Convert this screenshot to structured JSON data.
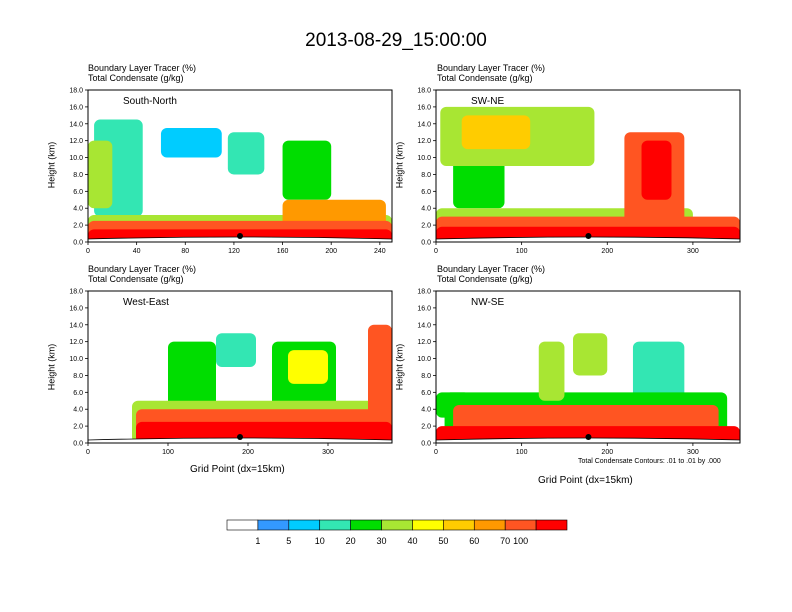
{
  "title": "2013-08-29_15:00:00",
  "chart_data": [
    {
      "type": "heatmap",
      "name": "South-North",
      "panel_title": "South-North",
      "field_label_1": "Boundary Layer Tracer   (%)",
      "field_label_2": "Total Condensate   (g/kg)",
      "ylabel": "Height (km)",
      "xlabel": "",
      "xlim": [
        0,
        250
      ],
      "ylim": [
        0,
        18
      ],
      "x_ticks": [
        "0",
        "40",
        "80",
        "120",
        "160",
        "200",
        "240"
      ],
      "y_ticks": [
        "0.0",
        "2.0",
        "4.0",
        "6.0",
        "8.0",
        "10.0",
        "12.0",
        "14.0",
        "16.0",
        "18.0"
      ],
      "terrain_peak_x": 125,
      "features": [
        {
          "x": [
            0,
            250
          ],
          "y": [
            0,
            1.5
          ],
          "level": 100
        },
        {
          "x": [
            0,
            250
          ],
          "y": [
            0,
            2.5
          ],
          "level": 70
        },
        {
          "x": [
            0,
            250
          ],
          "y": [
            0,
            3.2
          ],
          "level": 30
        },
        {
          "x": [
            160,
            245
          ],
          "y": [
            0,
            5.0
          ],
          "level": 60
        },
        {
          "x": [
            160,
            200
          ],
          "y": [
            5,
            12
          ],
          "level": 20
        },
        {
          "x": [
            5,
            45
          ],
          "y": [
            3,
            14.5
          ],
          "level": 10
        },
        {
          "x": [
            0,
            20
          ],
          "y": [
            4,
            12
          ],
          "level": 30
        },
        {
          "x": [
            60,
            110
          ],
          "y": [
            10,
            13.5
          ],
          "level": 5
        },
        {
          "x": [
            115,
            145
          ],
          "y": [
            8,
            13
          ],
          "level": 10
        }
      ]
    },
    {
      "type": "heatmap",
      "name": "SW-NE",
      "panel_title": "SW-NE",
      "field_label_1": "Boundary Layer Tracer   (%)",
      "field_label_2": "Total Condensate   (g/kg)",
      "ylabel": "Height (km)",
      "xlabel": "",
      "xlim": [
        0,
        355
      ],
      "ylim": [
        0,
        18
      ],
      "x_ticks": [
        "0",
        "100",
        "200",
        "300"
      ],
      "y_ticks": [
        "0.0",
        "2.0",
        "4.0",
        "6.0",
        "8.0",
        "10.0",
        "12.0",
        "14.0",
        "16.0",
        "18.0"
      ],
      "terrain_peak_x": 178,
      "features": [
        {
          "x": [
            0,
            355
          ],
          "y": [
            0,
            1.8
          ],
          "level": 100
        },
        {
          "x": [
            0,
            355
          ],
          "y": [
            0,
            3.0
          ],
          "level": 70
        },
        {
          "x": [
            0,
            300
          ],
          "y": [
            0,
            4.0
          ],
          "level": 30
        },
        {
          "x": [
            5,
            185
          ],
          "y": [
            9,
            16
          ],
          "level": 30
        },
        {
          "x": [
            30,
            110
          ],
          "y": [
            11,
            15
          ],
          "level": 50
        },
        {
          "x": [
            20,
            80
          ],
          "y": [
            4,
            10
          ],
          "level": 20
        },
        {
          "x": [
            220,
            290
          ],
          "y": [
            2,
            13
          ],
          "level": 70
        },
        {
          "x": [
            240,
            275
          ],
          "y": [
            5,
            12
          ],
          "level": 100
        }
      ]
    },
    {
      "type": "heatmap",
      "name": "West-East",
      "panel_title": "West-East",
      "field_label_1": "Boundary Layer Tracer   (%)",
      "field_label_2": "Total Condensate   (g/kg)",
      "ylabel": "Height (km)",
      "xlabel": "Grid Point (dx=15km)",
      "xlim": [
        0,
        380
      ],
      "ylim": [
        0,
        18
      ],
      "x_ticks": [
        "0",
        "100",
        "200",
        "300"
      ],
      "y_ticks": [
        "0.0",
        "2.0",
        "4.0",
        "6.0",
        "8.0",
        "10.0",
        "12.0",
        "14.0",
        "16.0",
        "18.0"
      ],
      "terrain_peak_x": 190,
      "features": [
        {
          "x": [
            60,
            380
          ],
          "y": [
            0,
            2.5
          ],
          "level": 100
        },
        {
          "x": [
            60,
            380
          ],
          "y": [
            0,
            4.0
          ],
          "level": 70
        },
        {
          "x": [
            55,
            380
          ],
          "y": [
            0,
            5.0
          ],
          "level": 30
        },
        {
          "x": [
            100,
            160
          ],
          "y": [
            4,
            12
          ],
          "level": 20
        },
        {
          "x": [
            230,
            310
          ],
          "y": [
            3,
            12
          ],
          "level": 20
        },
        {
          "x": [
            250,
            300
          ],
          "y": [
            7,
            11
          ],
          "level": 40
        },
        {
          "x": [
            350,
            380
          ],
          "y": [
            0,
            14
          ],
          "level": 70
        },
        {
          "x": [
            160,
            210
          ],
          "y": [
            9,
            13
          ],
          "level": 10
        }
      ]
    },
    {
      "type": "heatmap",
      "name": "NW-SE",
      "panel_title": "NW-SE",
      "field_label_1": "Boundary Layer Tracer   (%)",
      "field_label_2": "Total Condensate   (g/kg)",
      "ylabel": "Height (km)",
      "xlabel": "Grid Point (dx=15km)",
      "xlim": [
        0,
        355
      ],
      "ylim": [
        0,
        18
      ],
      "x_ticks": [
        "0",
        "100",
        "200",
        "300"
      ],
      "y_ticks": [
        "0.0",
        "2.0",
        "4.0",
        "6.0",
        "8.0",
        "10.0",
        "12.0",
        "14.0",
        "16.0",
        "18.0"
      ],
      "terrain_peak_x": 178,
      "features": [
        {
          "x": [
            0,
            355
          ],
          "y": [
            0,
            2.0
          ],
          "level": 100
        },
        {
          "x": [
            20,
            330
          ],
          "y": [
            0,
            4.5
          ],
          "level": 70
        },
        {
          "x": [
            10,
            340
          ],
          "y": [
            0,
            6.0
          ],
          "level": 20
        },
        {
          "x": [
            120,
            150
          ],
          "y": [
            5,
            12
          ],
          "level": 30
        },
        {
          "x": [
            160,
            200
          ],
          "y": [
            8,
            13
          ],
          "level": 30
        },
        {
          "x": [
            230,
            290
          ],
          "y": [
            5,
            12
          ],
          "level": 10
        },
        {
          "x": [
            0,
            40
          ],
          "y": [
            3,
            6
          ],
          "level": 20
        }
      ]
    }
  ],
  "contour_note": "Total Condensate Contours: .01 to .01 by .000",
  "colorbar": {
    "labels": [
      "1",
      "5",
      "10",
      "20",
      "30",
      "40",
      "50",
      "60",
      "70",
      "100"
    ],
    "levels": [
      0,
      1,
      5,
      10,
      20,
      30,
      40,
      50,
      60,
      70,
      100
    ],
    "colors": [
      "#ffffff",
      "#3399ff",
      "#00ccff",
      "#33e6b3",
      "#00dd00",
      "#a8e633",
      "#ffff00",
      "#ffcc00",
      "#ff9900",
      "#ff5522",
      "#ff0000"
    ]
  },
  "colors": {
    "terrain": "#ffffff",
    "terrain_line": "#000000",
    "marker": "#000000"
  }
}
